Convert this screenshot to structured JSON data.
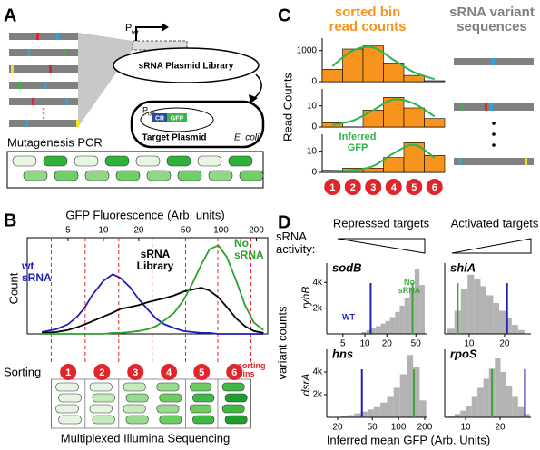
{
  "panel_labels": [
    "A",
    "B",
    "C",
    "D"
  ],
  "panel_a": {
    "pcr_label": "Mutagenesis PCR",
    "tet_promoter": [
      "P",
      "tet"
    ],
    "library": "sRNA Plasmid Library",
    "lac_promoter": [
      "P",
      "lac"
    ],
    "cr": "CR",
    "gfp": "GFP",
    "target": "Target Plasmid",
    "host": "E. coli"
  },
  "panel_b": {
    "y_label": "Count",
    "sorting": "Sorting",
    "bin_labels": [
      "1",
      "2",
      "3",
      "4",
      "5",
      "6"
    ],
    "bins_note": "sorting bins",
    "footer": "Multiplexed Illumina Sequencing"
  },
  "panel_c": {
    "counts_title": "sorted bin read counts",
    "variants_title": "sRNA variant sequences",
    "y_label": "Read Counts",
    "fit_label": "Inferred GFP",
    "bin_labels": [
      "1",
      "2",
      "3",
      "4",
      "5",
      "6"
    ]
  },
  "panel_d": {
    "repressed": "Repressed targets",
    "activated": "Activated targets",
    "activity": "sRNA activity:",
    "y_label": "variant counts",
    "rows": [
      "ryhB",
      "dsrA"
    ],
    "x_label": "Inferred mean GFP (Arb. Units)",
    "wt_label": "WT",
    "no_srna_label": "No sRNA"
  },
  "chart_data": [
    {
      "type": "line",
      "xlabel": "GFP Fluorescence (Arb. units)",
      "xscale": "log",
      "xlim": [
        2.25,
        250
      ],
      "xticks": [
        5,
        10,
        20,
        50,
        100,
        200
      ],
      "ylim": [
        0,
        100
      ],
      "gate_edges": [
        3.6,
        7,
        13.5,
        26,
        50,
        94,
        180
      ],
      "x": [
        3,
        4,
        5,
        6,
        7,
        8,
        10,
        12,
        14,
        17,
        20,
        24,
        28,
        33,
        40,
        48,
        57,
        68,
        80,
        95,
        112,
        135,
        160,
        190,
        230
      ],
      "series": [
        {
          "name": "wt sRNA",
          "color": "#1f1fb4",
          "values": [
            2,
            5,
            10,
            18,
            28,
            40,
            55,
            62,
            58,
            48,
            36,
            25,
            16,
            10,
            6,
            3,
            2,
            1,
            1,
            0,
            0,
            0,
            0,
            0,
            0
          ]
        },
        {
          "name": "sRNA Library",
          "color": "#000000",
          "values": [
            1,
            2,
            4,
            7,
            10,
            13,
            18,
            22,
            26,
            28,
            30,
            33,
            35,
            37,
            40,
            44,
            46,
            48,
            45,
            38,
            28,
            16,
            8,
            3,
            1
          ]
        },
        {
          "name": "No sRNA",
          "color": "#2ca02c",
          "values": [
            0,
            0,
            0,
            0,
            0,
            0,
            0,
            1,
            1,
            2,
            3,
            5,
            8,
            14,
            22,
            35,
            52,
            72,
            88,
            92,
            80,
            55,
            30,
            12,
            4
          ]
        }
      ]
    },
    {
      "type": "bar",
      "values": [
        400,
        1050,
        1150,
        600,
        200,
        30
      ],
      "fit": [
        500,
        1000,
        1100,
        700,
        300,
        80
      ],
      "ylim": [
        0,
        1400
      ],
      "yticks": [
        0,
        1000
      ],
      "color": "#f7941d",
      "fit_color": "#2db34a"
    },
    {
      "type": "bar",
      "values": [
        2,
        0,
        8,
        14,
        9,
        4
      ],
      "fit": [
        1,
        3,
        8,
        13,
        11,
        5
      ],
      "ylim": [
        0,
        18
      ],
      "yticks": [
        0,
        10
      ],
      "color": "#f7941d",
      "fit_color": "#2db34a"
    },
    {
      "type": "bar",
      "values": [
        1,
        2,
        2,
        7,
        14,
        8
      ],
      "fit": [
        0.5,
        1,
        3,
        9,
        13,
        7
      ],
      "ylim": [
        0,
        18
      ],
      "yticks": [
        0,
        10
      ],
      "color": "#f7941d",
      "fit_color": "#2db34a"
    },
    {
      "type": "histogram",
      "title": "sodB",
      "xscale": "log",
      "xlim": [
        3,
        70
      ],
      "xticks": [
        5,
        10,
        20,
        50
      ],
      "ylim": [
        0,
        5500
      ],
      "yticks": [
        {
          "value": 2000,
          "label": "2k"
        },
        {
          "value": 4000,
          "label": "4k"
        }
      ],
      "color": "#b3b3b3",
      "bins": [
        9,
        10.5,
        12,
        14,
        16.5,
        19,
        22,
        26,
        30,
        35,
        41,
        48,
        56,
        66
      ],
      "values": [
        150,
        300,
        450,
        600,
        800,
        1000,
        1300,
        1700,
        2200,
        2800,
        3600,
        5000,
        3800
      ],
      "wt": 12,
      "no_srna": 45,
      "wt_color": "#1f1fb4",
      "no_srna_color": "#39a935"
    },
    {
      "type": "histogram",
      "title": "shiA",
      "xscale": "log",
      "xlim": [
        6.2,
        33.5
      ],
      "xticks": [
        10,
        20
      ],
      "ylim": [
        0,
        5500
      ],
      "color": "#b3b3b3",
      "bins": [
        6.5,
        7.5,
        8.5,
        9.7,
        11,
        12.5,
        14,
        16,
        18,
        20.5,
        23,
        26,
        29.5
      ],
      "values": [
        400,
        1800,
        3500,
        4600,
        4300,
        3700,
        3000,
        2400,
        1800,
        1200,
        700,
        300
      ],
      "wt": 21,
      "no_srna": 8,
      "wt_color": "#1f1fb4",
      "no_srna_color": "#39a935"
    },
    {
      "type": "histogram",
      "title": "hns",
      "xscale": "log",
      "xlim": [
        15,
        210
      ],
      "xticks": [
        20,
        50,
        100,
        200
      ],
      "ylim": [
        0,
        6000
      ],
      "yticks": [
        {
          "value": 2000,
          "label": "2k"
        },
        {
          "value": 4000,
          "label": "4k"
        }
      ],
      "color": "#b3b3b3",
      "bins": [
        22,
        26,
        31,
        37,
        44,
        52,
        62,
        74,
        88,
        104,
        124,
        147,
        175,
        208
      ],
      "values": [
        100,
        200,
        350,
        500,
        700,
        900,
        1300,
        1800,
        2600,
        3800,
        5500,
        4400,
        1500
      ],
      "wt": 38,
      "no_srna": 150,
      "wt_color": "#1f1fb4",
      "no_srna_color": "#39a935"
    },
    {
      "type": "histogram",
      "title": "rpoS",
      "xscale": "log",
      "xlim": [
        6.57,
        37.2
      ],
      "xticks": [
        10,
        20
      ],
      "ylim": [
        0,
        6000
      ],
      "color": "#b3b3b3",
      "bins": [
        7,
        8,
        9,
        10,
        11.3,
        12.7,
        14.3,
        16,
        18,
        20.2,
        22.7,
        25.5,
        28.7,
        32.3,
        36.3
      ],
      "values": [
        100,
        300,
        600,
        1000,
        1800,
        2600,
        3400,
        4300,
        5200,
        4000,
        2800,
        1800,
        900,
        300
      ],
      "wt": 33,
      "no_srna": 17,
      "wt_color": "#1f1fb4",
      "no_srna_color": "#39a935"
    }
  ]
}
